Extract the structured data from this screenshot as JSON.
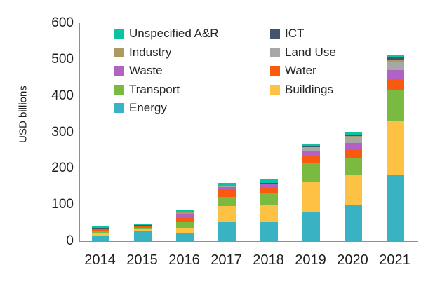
{
  "chart_data": {
    "type": "bar",
    "stacked": true,
    "ylabel": "USD billions",
    "categories": [
      "2014",
      "2015",
      "2016",
      "2017",
      "2018",
      "2019",
      "2020",
      "2021"
    ],
    "series": [
      {
        "name": "Energy",
        "color": "#39B3C4",
        "values": [
          15,
          27,
          22,
          53,
          55,
          82,
          101,
          182
        ]
      },
      {
        "name": "Buildings",
        "color": "#FDC243",
        "values": [
          7,
          6,
          15,
          43,
          46,
          81,
          83,
          150
        ]
      },
      {
        "name": "Transport",
        "color": "#7ABA41",
        "values": [
          5,
          4,
          15,
          26,
          30,
          52,
          44,
          85
        ]
      },
      {
        "name": "Water",
        "color": "#FA5A0F",
        "values": [
          5,
          3,
          14,
          21,
          15,
          20,
          26,
          30
        ]
      },
      {
        "name": "Waste",
        "color": "#B262C3",
        "values": [
          3,
          3,
          8,
          6,
          10,
          12,
          16,
          24
        ]
      },
      {
        "name": "Land Use",
        "color": "#A7A7A7",
        "values": [
          0,
          0,
          2,
          2,
          2,
          11,
          18,
          21
        ]
      },
      {
        "name": "Industry",
        "color": "#AB9B63",
        "values": [
          0.5,
          0.5,
          4,
          1,
          1,
          1,
          2,
          8
        ]
      },
      {
        "name": "ICT",
        "color": "#44546A",
        "values": [
          0.5,
          0.5,
          1,
          1,
          1,
          4,
          3,
          5
        ]
      },
      {
        "name": "Unspecified A&R",
        "color": "#0BC3A3",
        "values": [
          4,
          4,
          6,
          8,
          11,
          6,
          6,
          8
        ]
      }
    ],
    "totals": [
      40,
      48,
      87,
      161,
      171,
      269,
      299,
      513
    ],
    "ylim": [
      0,
      600
    ],
    "y_ticks": [
      0,
      100,
      200,
      300,
      400,
      500,
      600
    ],
    "grid": false,
    "legend_position": "top-inside",
    "legend_columns": [
      [
        "Unspecified A&R",
        "Industry",
        "Waste",
        "Transport",
        "Energy"
      ],
      [
        "ICT",
        "Land Use",
        "Water",
        "Buildings"
      ]
    ]
  }
}
